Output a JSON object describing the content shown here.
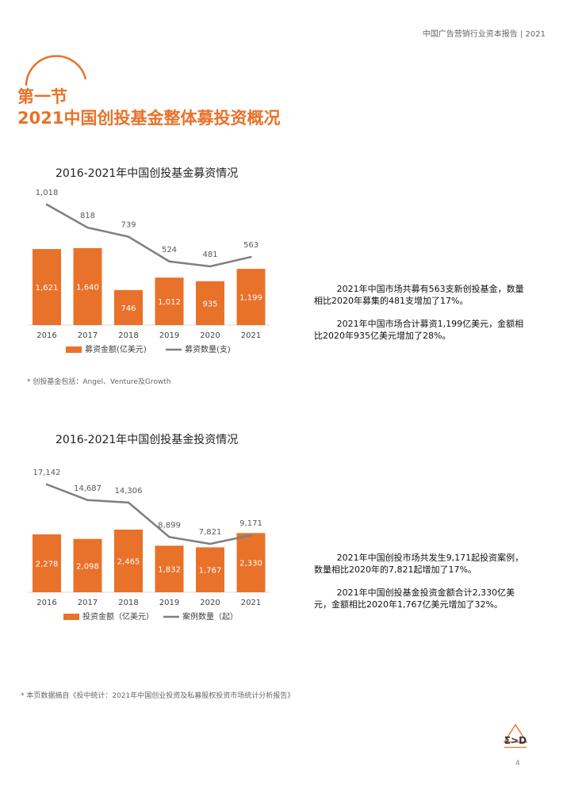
{
  "header": {
    "report_title": "中国广告营销行业资本报告 | 2021"
  },
  "section": {
    "line1": "第一节",
    "line2": "2021中国创投基金整体募投资概况"
  },
  "colors": {
    "accent": "#e8722a",
    "line": "#7f7f7f"
  },
  "chart_data": [
    {
      "type": "bar",
      "title": "2016-2021年中国创投基金募资情况",
      "categories": [
        "2016",
        "2017",
        "2018",
        "2019",
        "2020",
        "2021"
      ],
      "series": [
        {
          "name": "募资金额(亿美元)",
          "type": "bar",
          "values": [
            1621,
            1640,
            746,
            1012,
            935,
            1199
          ]
        },
        {
          "name": "募资数量(支)",
          "type": "line",
          "values": [
            1018,
            818,
            739,
            524,
            481,
            563
          ]
        }
      ],
      "bar_labels": [
        "1,621",
        "1,640",
        "746",
        "1,012",
        "935",
        "1,199"
      ],
      "line_labels": [
        "1,018",
        "818",
        "739",
        "524",
        "481",
        "563"
      ],
      "legend_position": "bottom"
    },
    {
      "type": "bar",
      "title": "2016-2021年中国创投基金投资情况",
      "categories": [
        "2016",
        "2017",
        "2018",
        "2019",
        "2020",
        "2021"
      ],
      "series": [
        {
          "name": "投资金额（亿美元）",
          "type": "bar",
          "values": [
            2278,
            2098,
            2465,
            1832,
            1767,
            2330
          ]
        },
        {
          "name": "案例数量（起）",
          "type": "line",
          "values": [
            17142,
            14687,
            14306,
            8899,
            7821,
            9171
          ]
        }
      ],
      "bar_labels": [
        "2,278",
        "2,098",
        "2,465",
        "1,832",
        "1,767",
        "2,330"
      ],
      "line_labels": [
        "17,142",
        "14,687",
        "14,306",
        "8,899",
        "7,821",
        "9,171"
      ],
      "legend_position": "bottom"
    }
  ],
  "notes": {
    "chart1": "* 创投基金包括：Angel、Venture及Growth",
    "source": "* 本页数据摘自《投中统计：2021年中国创业投资及私募股权投资市场统计分析报告》"
  },
  "descriptions": {
    "block1": [
      "2021年中国市场共募有563支新创投基金，数量相比2020年募集的481支增加了17%。",
      "2021年中国市场合计募资1,199亿美元，金额相比2020年935亿美元增加了28%。"
    ],
    "block2": [
      "2021年中国创投市场共发生9,171起投资案例，数量相比2020年的7,821起增加了17%。",
      "2021年中国创投基金投资金额合计2,330亿美元，金额相比2020年1,767亿美元增加了32%。"
    ]
  },
  "footer": {
    "page_number": "4",
    "logo_icon": "company-logo-icon"
  }
}
